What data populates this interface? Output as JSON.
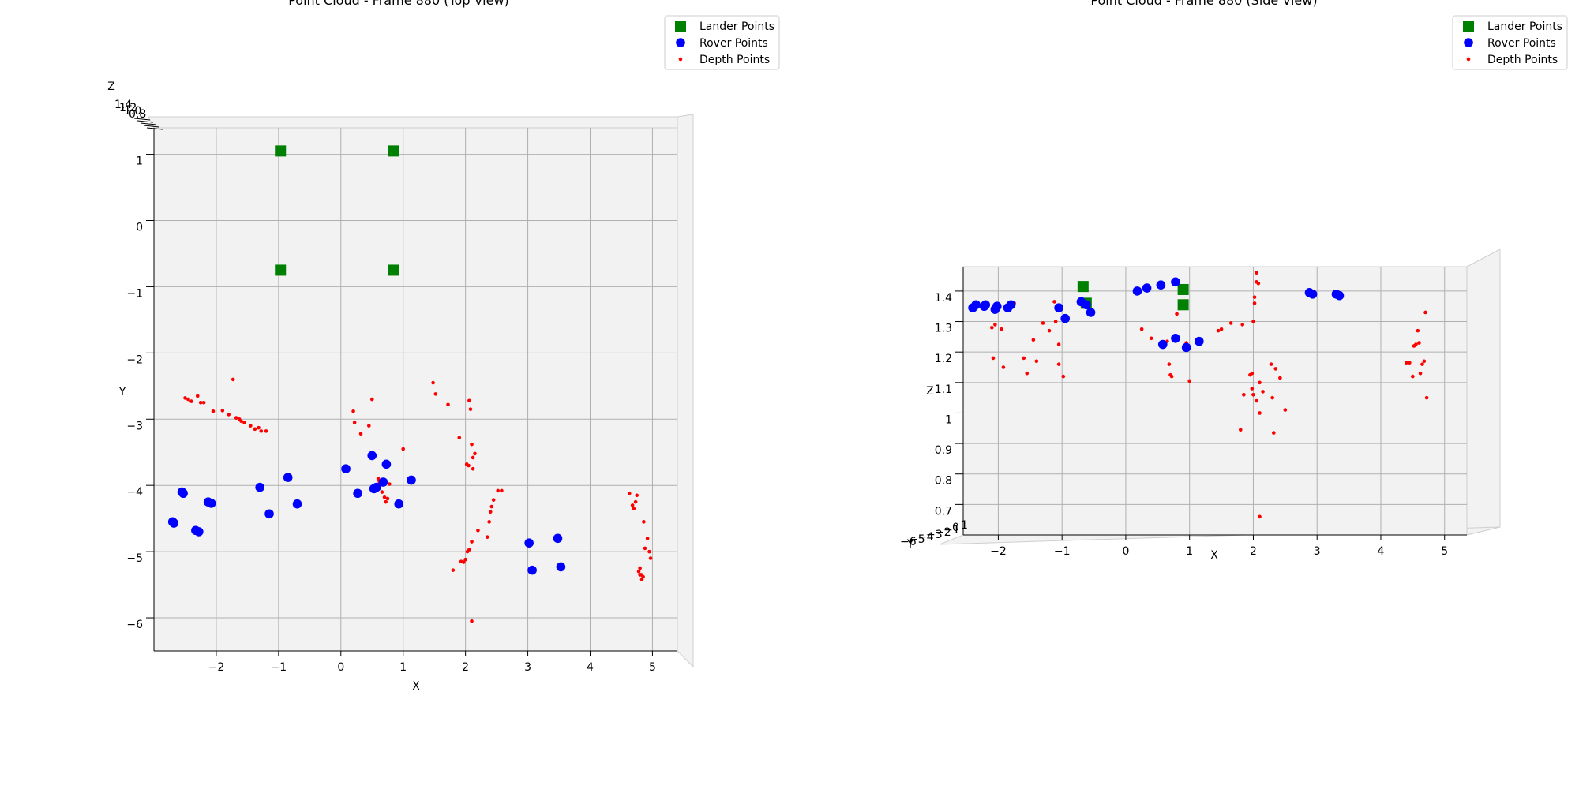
{
  "chart_data": [
    {
      "type": "scatter",
      "title": "Point Cloud - Frame 880 (Top View)",
      "xlabel": "X",
      "ylabel": "Y",
      "zlabel": "Z",
      "xlim": [
        -3.0,
        5.4
      ],
      "ylim": [
        -6.5,
        1.4
      ],
      "xticks": [
        -2,
        -1,
        0,
        1,
        2,
        3,
        4,
        5
      ],
      "yticks": [
        1,
        0,
        -1,
        -2,
        -3,
        -4,
        -5,
        -6
      ],
      "zticks_partial": [
        "1.4",
        "1.2",
        "1.0",
        "0.8"
      ],
      "grid": true,
      "legend_placement": "upper-right",
      "legend": [
        {
          "label": "Lander Points",
          "marker": "square",
          "color": "#008000"
        },
        {
          "label": "Rover Points",
          "marker": "circle",
          "color": "#0000ff"
        },
        {
          "label": "Depth Points",
          "marker": "dot",
          "color": "#ff0000"
        }
      ],
      "series": [
        {
          "name": "Lander Points",
          "x": [
            -0.97,
            0.84,
            -0.97,
            0.84
          ],
          "y": [
            1.05,
            1.05,
            -0.75,
            -0.75
          ]
        },
        {
          "name": "Rover Points",
          "x": [
            -2.7,
            -2.68,
            -2.55,
            -2.53,
            -2.33,
            -2.28,
            -2.13,
            -2.08,
            -1.3,
            -1.15,
            -0.85,
            -0.7,
            0.08,
            0.27,
            0.5,
            0.53,
            0.57,
            0.68,
            0.73,
            0.93,
            1.13,
            3.02,
            3.07,
            3.48,
            3.53
          ],
          "y": [
            -4.55,
            -4.57,
            -4.1,
            -4.12,
            -4.68,
            -4.7,
            -4.25,
            -4.27,
            -4.03,
            -4.43,
            -3.88,
            -4.28,
            -3.75,
            -4.12,
            -3.55,
            -4.05,
            -4.03,
            -3.95,
            -3.68,
            -4.28,
            -3.92,
            -4.87,
            -5.28,
            -4.8,
            -5.23
          ]
        },
        {
          "name": "Depth Points",
          "x": [
            -2.5,
            -2.45,
            -2.4,
            -2.3,
            -2.25,
            -2.2,
            -2.05,
            -1.9,
            -1.8,
            -1.73,
            -1.68,
            -1.63,
            -1.6,
            -1.55,
            -1.45,
            -1.38,
            -1.32,
            -1.28,
            -1.2,
            0.2,
            0.22,
            0.32,
            0.45,
            0.5,
            0.52,
            0.6,
            0.62,
            0.66,
            0.7,
            0.72,
            0.75,
            0.78,
            1.0,
            1.48,
            1.52,
            1.72,
            1.9,
            2.02,
            2.05,
            2.06,
            2.08,
            2.1,
            2.12,
            2.12,
            2.15,
            1.8,
            1.93,
            1.97,
            2.0,
            2.03,
            2.06,
            2.1,
            2.2,
            2.35,
            2.38,
            2.4,
            2.42,
            2.45,
            2.52,
            2.58,
            2.1,
            4.63,
            4.68,
            4.7,
            4.73,
            4.75,
            4.78,
            4.8,
            4.83,
            4.86,
            4.88,
            4.92,
            4.95,
            4.97,
            4.8,
            4.82,
            4.85
          ],
          "y": [
            -2.68,
            -2.7,
            -2.73,
            -2.65,
            -2.75,
            -2.75,
            -2.88,
            -2.87,
            -2.93,
            -2.4,
            -2.98,
            -3.0,
            -3.03,
            -3.05,
            -3.1,
            -3.15,
            -3.13,
            -3.18,
            -3.18,
            -2.88,
            -3.05,
            -3.22,
            -3.1,
            -2.7,
            -4.03,
            -3.9,
            -3.95,
            -4.1,
            -4.18,
            -4.25,
            -4.2,
            -3.98,
            -3.45,
            -2.45,
            -2.62,
            -2.78,
            -3.28,
            -3.68,
            -3.7,
            -2.72,
            -2.85,
            -3.38,
            -3.75,
            -3.58,
            -3.52,
            -5.28,
            -5.15,
            -5.16,
            -5.12,
            -5.0,
            -4.97,
            -4.85,
            -4.68,
            -4.78,
            -4.55,
            -4.4,
            -4.32,
            -4.22,
            -4.08,
            -4.08,
            -6.05,
            -4.12,
            -4.3,
            -4.35,
            -4.25,
            -4.15,
            -5.3,
            -5.35,
            -5.42,
            -4.55,
            -4.95,
            -4.8,
            -5.0,
            -5.1,
            -5.25,
            -5.35,
            -5.38
          ]
        }
      ]
    },
    {
      "type": "scatter",
      "title": "Point Cloud - Frame 880 (Side View)",
      "xlabel": "X",
      "ylabel": "Z",
      "depth_label": "Y",
      "xlim": [
        -2.55,
        5.35
      ],
      "ylim": [
        0.6,
        1.48
      ],
      "xticks": [
        -2,
        -1,
        0,
        1,
        2,
        3,
        4,
        5
      ],
      "yticks": [
        1.4,
        1.3,
        1.2,
        1.1,
        1.0,
        0.9,
        0.8,
        0.7
      ],
      "depth_ticks_partial": [
        "-6",
        "-5",
        "-4",
        "-3",
        "-2",
        "-1",
        "0",
        "1"
      ],
      "grid": true,
      "legend_placement": "upper-right",
      "legend": [
        {
          "label": "Lander Points",
          "marker": "square",
          "color": "#008000"
        },
        {
          "label": "Rover Points",
          "marker": "circle",
          "color": "#0000ff"
        },
        {
          "label": "Depth Points",
          "marker": "dot",
          "color": "#ff0000"
        }
      ],
      "series": [
        {
          "name": "Lander Points",
          "x": [
            -0.67,
            -0.62,
            0.9,
            0.9
          ],
          "y": [
            1.415,
            1.36,
            1.405,
            1.355
          ]
        },
        {
          "name": "Rover Points",
          "x": [
            -2.4,
            -2.35,
            -2.22,
            -2.2,
            -2.05,
            -2.02,
            -1.85,
            -1.8,
            -1.05,
            -0.95,
            -0.7,
            -0.62,
            -0.55,
            0.18,
            0.33,
            0.55,
            0.58,
            0.78,
            0.78,
            0.95,
            1.15,
            2.88,
            2.93,
            3.3,
            3.35
          ],
          "y": [
            1.345,
            1.355,
            1.35,
            1.355,
            1.34,
            1.35,
            1.345,
            1.355,
            1.345,
            1.31,
            1.365,
            1.355,
            1.33,
            1.4,
            1.41,
            1.42,
            1.225,
            1.43,
            1.245,
            1.215,
            1.235,
            1.395,
            1.39,
            1.39,
            1.385
          ]
        },
        {
          "name": "Depth Points",
          "x": [
            -2.1,
            -2.05,
            -2.08,
            -1.95,
            -1.92,
            -1.75,
            -1.6,
            -1.55,
            -1.45,
            -1.4,
            -1.3,
            -1.2,
            -1.12,
            -1.1,
            -1.05,
            -1.05,
            -0.98,
            0.25,
            0.4,
            0.65,
            0.68,
            0.7,
            0.72,
            0.8,
            0.95,
            1.0,
            1.45,
            1.5,
            1.65,
            1.83,
            1.85,
            1.95,
            1.98,
            2.0,
            2.02,
            2.02,
            2.05,
            2.05,
            2.08,
            2.1,
            2.15,
            1.8,
            1.98,
            2.0,
            2.05,
            2.1,
            2.28,
            2.3,
            2.32,
            2.35,
            2.42,
            2.5,
            2.1,
            4.4,
            4.45,
            4.5,
            4.52,
            4.55,
            4.58,
            4.6,
            4.62,
            4.65,
            4.68,
            4.7,
            4.72
          ],
          "y": [
            1.28,
            1.29,
            1.18,
            1.275,
            1.15,
            1.36,
            1.18,
            1.13,
            1.24,
            1.17,
            1.295,
            1.27,
            1.365,
            1.3,
            1.16,
            1.225,
            1.12,
            1.275,
            1.245,
            1.235,
            1.16,
            1.125,
            1.12,
            1.325,
            1.23,
            1.105,
            1.27,
            1.275,
            1.295,
            1.29,
            1.06,
            1.125,
            1.13,
            1.3,
            1.36,
            1.38,
            1.43,
            1.46,
            1.425,
            1.1,
            1.07,
            0.945,
            1.08,
            1.06,
            1.04,
            1.0,
            1.16,
            1.05,
            0.935,
            1.145,
            1.115,
            1.01,
            0.66,
            1.165,
            1.165,
            1.12,
            1.22,
            1.225,
            1.27,
            1.23,
            1.13,
            1.16,
            1.17,
            1.33,
            1.05
          ]
        }
      ]
    }
  ]
}
